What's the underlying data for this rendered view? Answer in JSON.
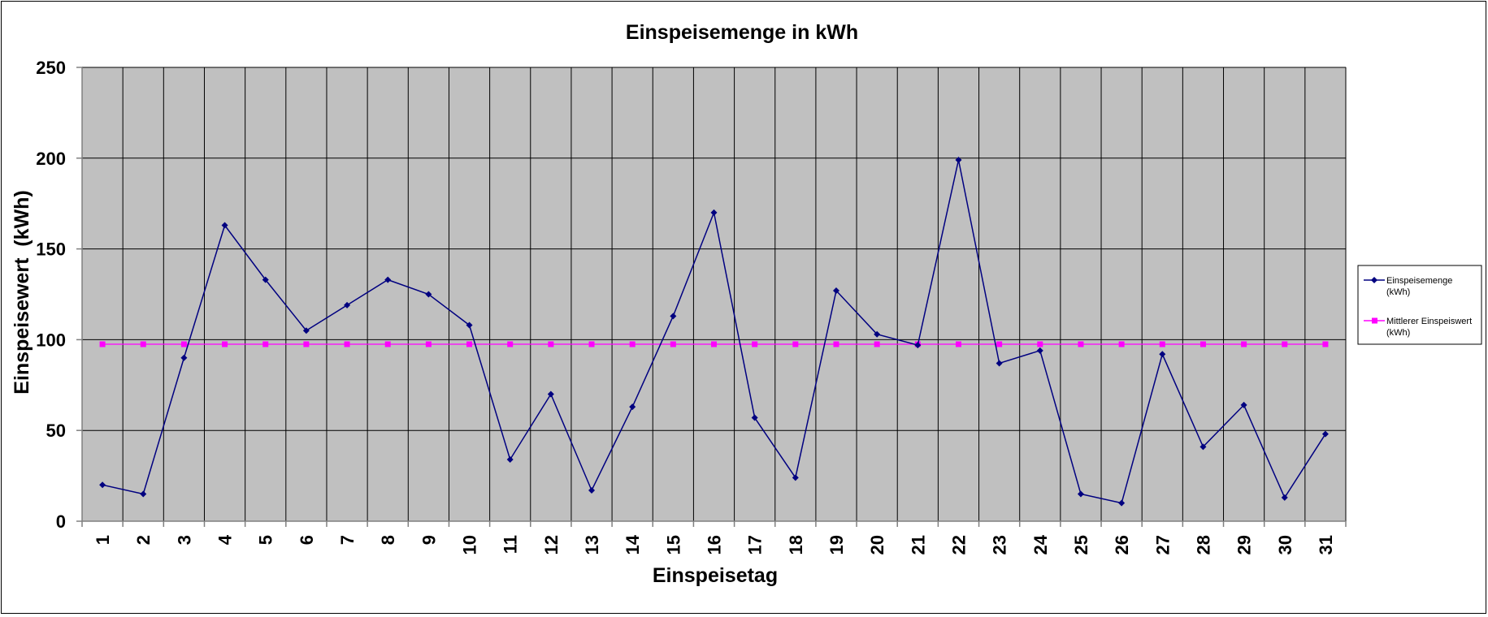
{
  "chart_data": {
    "type": "line",
    "title": "Einspeisemenge in kWh",
    "xlabel": "Einspeisetag",
    "ylabel": "Einspeisewert  (kWh)",
    "categories": [
      "1",
      "2",
      "3",
      "4",
      "5",
      "6",
      "7",
      "8",
      "9",
      "10",
      "11",
      "12",
      "13",
      "14",
      "15",
      "16",
      "17",
      "18",
      "19",
      "20",
      "21",
      "22",
      "23",
      "24",
      "25",
      "26",
      "27",
      "28",
      "29",
      "30",
      "31"
    ],
    "ylim": [
      0,
      250
    ],
    "yticks": [
      0,
      50,
      100,
      150,
      200,
      250
    ],
    "grid": true,
    "legend_position": "right",
    "series": [
      {
        "name": "Einspeisemenge (kWh)",
        "legend_lines": [
          "Einspeisemenge",
          "(kWh)"
        ],
        "color": "#000080",
        "marker": "diamond",
        "values": [
          20,
          15,
          90,
          163,
          133,
          105,
          119,
          133,
          125,
          108,
          34,
          70,
          17,
          63,
          113,
          170,
          57,
          24,
          127,
          103,
          97,
          199,
          87,
          94,
          15,
          10,
          92,
          41,
          64,
          13,
          48
        ]
      },
      {
        "name": "Mittlerer Einspeiswert (kWh)",
        "legend_lines": [
          "Mittlerer Einspeiswert",
          "(kWh)"
        ],
        "color": "#ff00ff",
        "marker": "square",
        "values": [
          97.5,
          97.5,
          97.5,
          97.5,
          97.5,
          97.5,
          97.5,
          97.5,
          97.5,
          97.5,
          97.5,
          97.5,
          97.5,
          97.5,
          97.5,
          97.5,
          97.5,
          97.5,
          97.5,
          97.5,
          97.5,
          97.5,
          97.5,
          97.5,
          97.5,
          97.5,
          97.5,
          97.5,
          97.5,
          97.5,
          97.5
        ]
      }
    ],
    "colors": {
      "plot_background": "#c0c0c0",
      "gridline": "#000000"
    }
  }
}
